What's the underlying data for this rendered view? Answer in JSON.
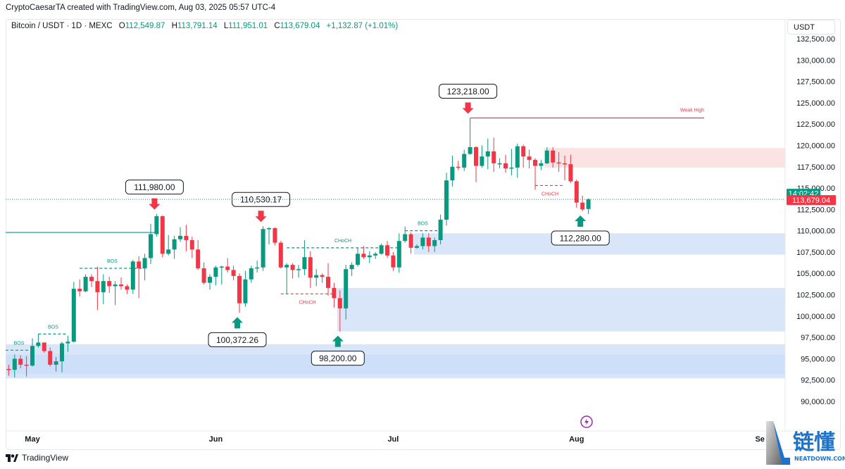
{
  "credit": "CryptoCaesarTA created with TradingView.com, Aug 03, 2025 05:57 UTC-4",
  "legend": {
    "symbol": "Bitcoin / USDT · 1D · MEXC",
    "o_label": "O",
    "o": "112,549.87",
    "h_label": "H",
    "h": "113,791.14",
    "l_label": "L",
    "l": "111,951.01",
    "c_label": "C",
    "c": "113,679.04",
    "change": "+1,132.87 (+1.01%)"
  },
  "currency_button": "USDT",
  "footer": {
    "logo_text": "TradingView"
  },
  "watermark": {
    "cn": "链懂",
    "en": "NEATDOWN.COM"
  },
  "colors": {
    "up": "#089981",
    "down": "#f23645",
    "demand_zone": "#c9dbf8",
    "supply_zone": "#fbdcdc",
    "accent_purple": "#9c27b0"
  },
  "chart_data": {
    "type": "candlestick",
    "ylim": [
      88000,
      133800
    ],
    "y_ticks": [
      "132,500.00",
      "130,000.00",
      "127,500.00",
      "125,000.00",
      "122,500.00",
      "120,000.00",
      "117,500.00",
      "115,000.00",
      "112,500.00",
      "110,000.00",
      "107,500.00",
      "105,000.00",
      "102,500.00",
      "100,000.00",
      "97,500.00",
      "95,000.00",
      "92,500.00",
      "90,000.00"
    ],
    "x_ticks": [
      {
        "label": "May",
        "date": "2025-05-01"
      },
      {
        "label": "Jun",
        "date": "2025-06-01"
      },
      {
        "label": "Jul",
        "date": "2025-07-01"
      },
      {
        "label": "Aug",
        "date": "2025-08-01"
      },
      {
        "label": "Se",
        "date": "2025-09-01"
      }
    ],
    "current_price": {
      "value": 113679.04,
      "label": "113,679.04",
      "countdown": "14:02:42"
    },
    "candles": [
      [
        "2025-04-27",
        93800,
        94300,
        93000,
        93700
      ],
      [
        "2025-04-28",
        93700,
        95500,
        92800,
        95000
      ],
      [
        "2025-04-29",
        95000,
        95400,
        93900,
        94300
      ],
      [
        "2025-04-30",
        94300,
        95300,
        92900,
        94200
      ],
      [
        "2025-05-01",
        94200,
        97400,
        94100,
        96500
      ],
      [
        "2025-05-02",
        96500,
        97900,
        96300,
        96900
      ],
      [
        "2025-05-03",
        96900,
        96900,
        95700,
        95900
      ],
      [
        "2025-05-04",
        95900,
        96300,
        94100,
        94300
      ],
      [
        "2025-05-05",
        94300,
        95200,
        93500,
        94700
      ],
      [
        "2025-05-06",
        94700,
        97000,
        93400,
        96800
      ],
      [
        "2025-05-07",
        96800,
        97700,
        95800,
        97000
      ],
      [
        "2025-05-08",
        97000,
        104000,
        96900,
        103200
      ],
      [
        "2025-05-09",
        103200,
        104300,
        102300,
        102900
      ],
      [
        "2025-05-10",
        102900,
        104900,
        102800,
        104600
      ],
      [
        "2025-05-11",
        104600,
        104900,
        103400,
        104100
      ],
      [
        "2025-05-12",
        104100,
        105800,
        100700,
        102800
      ],
      [
        "2025-05-13",
        102800,
        104900,
        101400,
        104100
      ],
      [
        "2025-05-14",
        104100,
        104600,
        102700,
        103500
      ],
      [
        "2025-05-15",
        103500,
        104100,
        101300,
        103700
      ],
      [
        "2025-05-16",
        103700,
        104500,
        103100,
        103500
      ],
      [
        "2025-05-17",
        103500,
        103700,
        102600,
        103100
      ],
      [
        "2025-05-18",
        103100,
        106600,
        102600,
        106400
      ],
      [
        "2025-05-19",
        106400,
        107000,
        102100,
        105600
      ],
      [
        "2025-05-20",
        105600,
        107300,
        104200,
        106800
      ],
      [
        "2025-05-21",
        106800,
        110800,
        106100,
        109600
      ],
      [
        "2025-05-22",
        109600,
        111980,
        109300,
        111700
      ],
      [
        "2025-05-23",
        111700,
        111800,
        106900,
        107300
      ],
      [
        "2025-05-24",
        107300,
        109500,
        107100,
        107800
      ],
      [
        "2025-05-25",
        107800,
        109400,
        106700,
        109000
      ],
      [
        "2025-05-26",
        109000,
        110400,
        108700,
        109400
      ],
      [
        "2025-05-27",
        109400,
        110700,
        107600,
        108900
      ],
      [
        "2025-05-28",
        108900,
        109300,
        106800,
        107800
      ],
      [
        "2025-05-29",
        107800,
        108900,
        105400,
        105600
      ],
      [
        "2025-05-30",
        105600,
        106300,
        103700,
        103900
      ],
      [
        "2025-05-31",
        103900,
        104900,
        103100,
        104600
      ],
      [
        "2025-06-01",
        104600,
        105900,
        103600,
        105700
      ],
      [
        "2025-06-02",
        105700,
        105900,
        103700,
        105800
      ],
      [
        "2025-06-03",
        105800,
        106800,
        105100,
        105400
      ],
      [
        "2025-06-04",
        105400,
        105900,
        104200,
        104700
      ],
      [
        "2025-06-05",
        104700,
        105000,
        100372.26,
        101500
      ],
      [
        "2025-06-06",
        101500,
        105300,
        101100,
        104300
      ],
      [
        "2025-06-07",
        104300,
        105900,
        103900,
        105600
      ],
      [
        "2025-06-08",
        105600,
        106500,
        105100,
        105700
      ],
      [
        "2025-06-09",
        105700,
        110530.17,
        105300,
        110200
      ],
      [
        "2025-06-10",
        110200,
        110400,
        108400,
        110300
      ],
      [
        "2025-06-11",
        110300,
        110400,
        108300,
        108600
      ],
      [
        "2025-06-12",
        108600,
        108800,
        105600,
        105700
      ],
      [
        "2025-06-13",
        105700,
        106200,
        102600,
        106000
      ],
      [
        "2025-06-14",
        106000,
        106200,
        104400,
        105400
      ],
      [
        "2025-06-15",
        105400,
        106000,
        104500,
        105500
      ],
      [
        "2025-06-16",
        105500,
        108900,
        104800,
        106900
      ],
      [
        "2025-06-17",
        106900,
        107600,
        103300,
        104500
      ],
      [
        "2025-06-18",
        104500,
        105500,
        103500,
        104800
      ],
      [
        "2025-06-19",
        104800,
        105000,
        103900,
        104600
      ],
      [
        "2025-06-20",
        104600,
        106200,
        102400,
        103300
      ],
      [
        "2025-06-21",
        103300,
        103900,
        101000,
        102100
      ],
      [
        "2025-06-22",
        102100,
        103000,
        98200,
        100900
      ],
      [
        "2025-06-23",
        100900,
        106000,
        99600,
        105500
      ],
      [
        "2025-06-24",
        105500,
        106300,
        104700,
        106000
      ],
      [
        "2025-06-25",
        106000,
        108000,
        105800,
        107300
      ],
      [
        "2025-06-26",
        107300,
        108200,
        106700,
        106900
      ],
      [
        "2025-06-27",
        106900,
        107600,
        106200,
        107100
      ],
      [
        "2025-06-28",
        107100,
        107500,
        106700,
        107300
      ],
      [
        "2025-06-29",
        107300,
        108500,
        107200,
        108300
      ],
      [
        "2025-06-30",
        108300,
        108800,
        106800,
        107100
      ],
      [
        "2025-07-01",
        107100,
        107500,
        105300,
        105700
      ],
      [
        "2025-07-02",
        105700,
        109700,
        105100,
        108800
      ],
      [
        "2025-07-03",
        108800,
        110500,
        108600,
        109600
      ],
      [
        "2025-07-04",
        109600,
        109800,
        107300,
        108000
      ],
      [
        "2025-07-05",
        108000,
        108400,
        107900,
        108200
      ],
      [
        "2025-07-06",
        108200,
        109700,
        107800,
        109200
      ],
      [
        "2025-07-07",
        109200,
        109700,
        107500,
        108200
      ],
      [
        "2025-07-08",
        108200,
        109200,
        107500,
        108900
      ],
      [
        "2025-07-09",
        108900,
        111900,
        108400,
        111300
      ],
      [
        "2025-07-10",
        111300,
        116800,
        110600,
        115900
      ],
      [
        "2025-07-11",
        115900,
        118800,
        115200,
        117500
      ],
      [
        "2025-07-12",
        117500,
        118200,
        117100,
        117400
      ],
      [
        "2025-07-13",
        117400,
        119500,
        117000,
        119000
      ],
      [
        "2025-07-14",
        119000,
        123218,
        118900,
        119800
      ],
      [
        "2025-07-15",
        119800,
        119900,
        115700,
        117600
      ],
      [
        "2025-07-16",
        117600,
        120000,
        117400,
        118700
      ],
      [
        "2025-07-17",
        118700,
        120800,
        117200,
        119300
      ],
      [
        "2025-07-18",
        119300,
        120900,
        116900,
        117900
      ],
      [
        "2025-07-19",
        117900,
        118500,
        117300,
        117900
      ],
      [
        "2025-07-20",
        117900,
        118900,
        116800,
        117300
      ],
      [
        "2025-07-21",
        117300,
        119600,
        116500,
        117400
      ],
      [
        "2025-07-22",
        117400,
        120200,
        116200,
        119900
      ],
      [
        "2025-07-23",
        119900,
        120100,
        117400,
        118700
      ],
      [
        "2025-07-24",
        118700,
        119500,
        117300,
        118300
      ],
      [
        "2025-07-25",
        118300,
        118500,
        114800,
        117600
      ],
      [
        "2025-07-26",
        117600,
        118300,
        117100,
        117900
      ],
      [
        "2025-07-27",
        117900,
        119800,
        117800,
        119400
      ],
      [
        "2025-07-28",
        119400,
        119800,
        117400,
        118000
      ],
      [
        "2025-07-29",
        118000,
        119200,
        116900,
        117900
      ],
      [
        "2025-07-30",
        117900,
        118800,
        115900,
        117800
      ],
      [
        "2025-07-31",
        117800,
        118900,
        115600,
        115800
      ],
      [
        "2025-08-01",
        115800,
        116000,
        112700,
        113300
      ],
      [
        "2025-08-02",
        113300,
        114100,
        112280,
        112500
      ],
      [
        "2025-08-03",
        112549.87,
        113791.14,
        111951.01,
        113679.04
      ]
    ],
    "zones": [
      {
        "kind": "demand",
        "from": "2025-04-27",
        "price_top": 96700,
        "price_bottom": 92700
      },
      {
        "kind": "demand",
        "from": "2025-04-27",
        "price_top": 95500,
        "price_bottom": 93200
      },
      {
        "kind": "demand",
        "from": "2025-06-22",
        "price_top": 103300,
        "price_bottom": 98200
      },
      {
        "kind": "demand",
        "from": "2025-07-05",
        "price_top": 109700,
        "price_bottom": 107200
      },
      {
        "kind": "supply",
        "from": "2025-07-27",
        "price_top": 119700,
        "price_bottom": 117400
      }
    ],
    "levels": [
      {
        "label": "",
        "style": "solid",
        "color": "#089981",
        "from": "2025-04-26",
        "to": "2025-05-22",
        "price": 109800
      },
      {
        "label": "Weak High",
        "style": "solid",
        "color": "#f23645",
        "from": "2025-07-14",
        "to": "2025-09-05",
        "price": 123218
      }
    ],
    "structure": [
      {
        "label": "BOS",
        "color": "#089981",
        "from": "2025-04-26",
        "to": "2025-05-01",
        "price": 96000
      },
      {
        "label": "BOS",
        "color": "#089981",
        "from": "2025-05-02",
        "to": "2025-05-07",
        "price": 97900
      },
      {
        "label": "BOS",
        "color": "#089981",
        "from": "2025-05-09",
        "to": "2025-05-20",
        "price": 105600
      },
      {
        "label": "CHoCH",
        "color": "#089981",
        "from": "2025-06-13",
        "to": "2025-07-02",
        "price": 108000
      },
      {
        "label": "CHoCH",
        "color": "#f23645",
        "from": "2025-06-12",
        "to": "2025-06-21",
        "price": 102600
      },
      {
        "label": "BOS",
        "color": "#089981",
        "from": "2025-07-03",
        "to": "2025-07-09",
        "price": 110000
      },
      {
        "label": "CHoCH",
        "color": "#f23645",
        "from": "2025-07-25",
        "to": "2025-07-30",
        "price": 115300
      }
    ],
    "callouts": [
      {
        "label": "123,218.00",
        "date": "2025-07-14",
        "price": 123218,
        "dir": "down"
      },
      {
        "label": "111,980.00",
        "date": "2025-05-22",
        "price": 111980,
        "dir": "down"
      },
      {
        "label": "110,530.17",
        "date": "2025-06-09",
        "price": 110530.17,
        "dir": "down"
      },
      {
        "label": "100,372.26",
        "date": "2025-06-05",
        "price": 100372.26,
        "dir": "up"
      },
      {
        "label": "98,200.00",
        "date": "2025-06-22",
        "price": 98200,
        "dir": "up"
      },
      {
        "label": "112,280.00",
        "date": "2025-08-02",
        "price": 112280,
        "dir": "up"
      }
    ]
  }
}
